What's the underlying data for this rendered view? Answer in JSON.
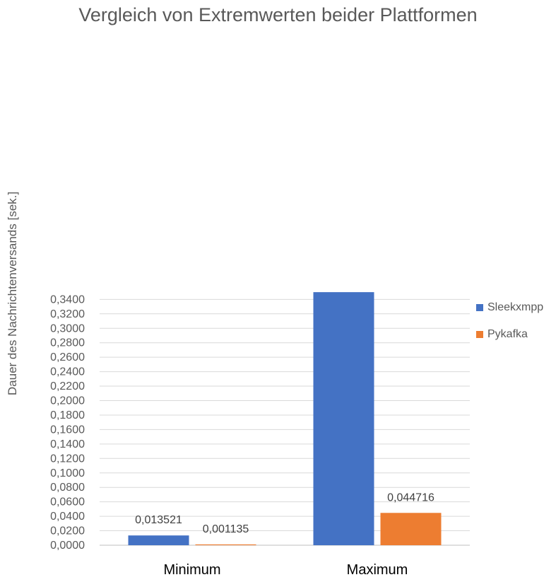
{
  "chart_data": {
    "type": "bar",
    "title": "Vergleich von Extremwerten beider Plattformen",
    "xlabel": "",
    "ylabel": "Dauer des Nachrichtenversands [sek.]",
    "categories": [
      "Minimum",
      "Maximum"
    ],
    "series": [
      {
        "name": "Sleekxmpp",
        "color": "#4472C4",
        "values": [
          0.013521,
          0.35
        ],
        "labels": [
          "0,013521",
          ""
        ]
      },
      {
        "name": "Pykafka",
        "color": "#ED7D31",
        "values": [
          0.001135,
          0.044716
        ],
        "labels": [
          "0,001135",
          "0,044716"
        ]
      }
    ],
    "ylim": [
      0,
      0.35
    ],
    "yticks": [
      "0,0000",
      "0,0200",
      "0,0400",
      "0,0600",
      "0,0800",
      "0,1000",
      "0,1200",
      "0,1400",
      "0,1600",
      "0,1800",
      "0,2000",
      "0,2200",
      "0,2400",
      "0,2600",
      "0,2800",
      "0,3000",
      "0,3200",
      "0,3400"
    ],
    "grid": true,
    "legend_position": "right"
  }
}
